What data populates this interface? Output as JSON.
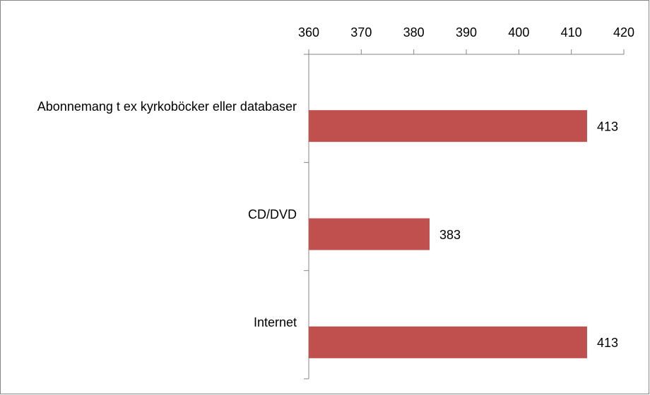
{
  "chart_data": {
    "type": "bar",
    "orientation": "horizontal",
    "categories": [
      "Abonnemang t ex kyrkoböcker eller databaser",
      "CD/DVD",
      "Internet"
    ],
    "values": [
      413,
      383,
      413
    ],
    "color": "#c0504d",
    "xlim": [
      360,
      420
    ],
    "xticks": [
      360,
      370,
      380,
      390,
      400,
      410,
      420
    ],
    "grid": false
  }
}
